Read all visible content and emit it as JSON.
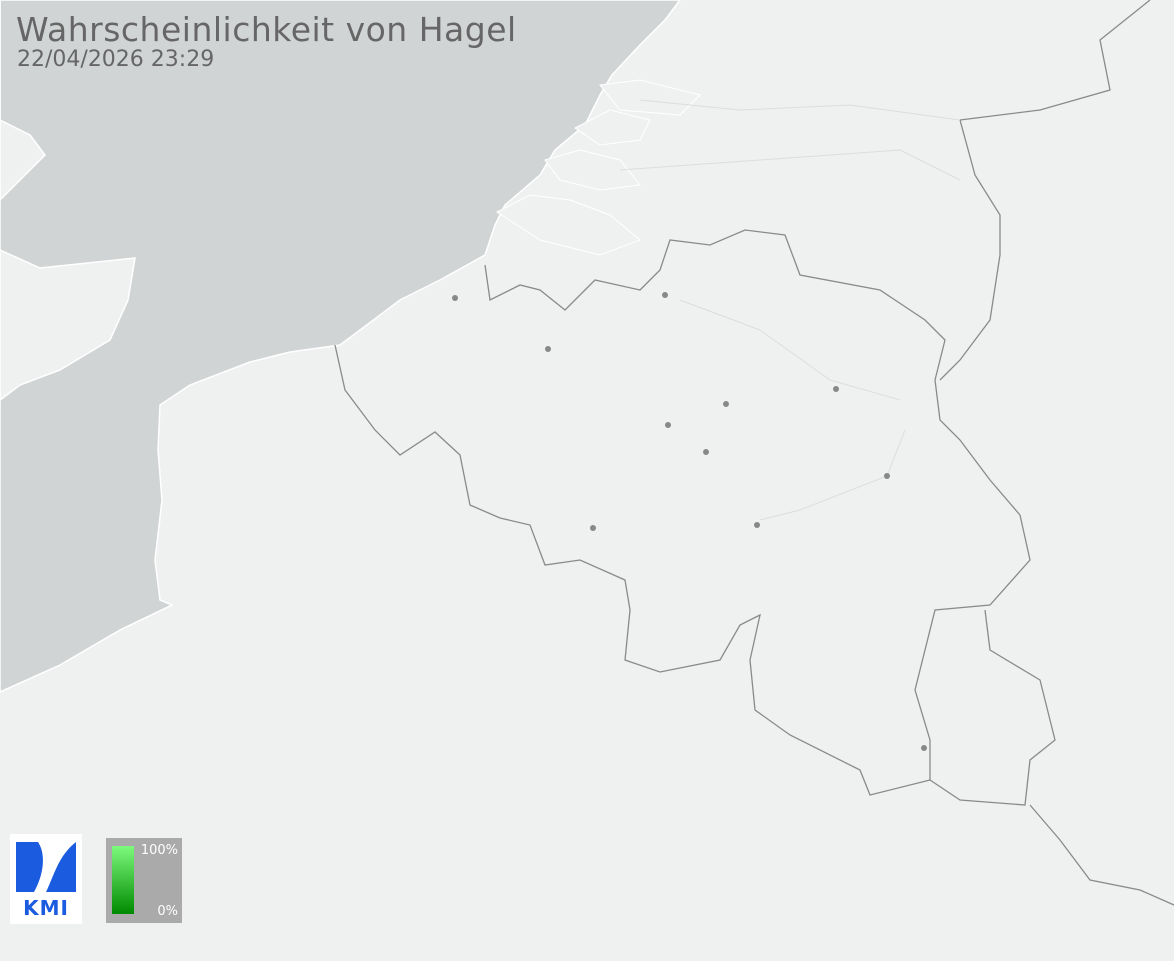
{
  "header": {
    "title": "Wahrscheinlichkeit von Hagel",
    "timestamp": "22/04/2026 23:29"
  },
  "logo": {
    "text": "KMI",
    "color": "#1b5be0"
  },
  "legend": {
    "max_label": "100%",
    "min_label": "0%",
    "color_max": "#7dfa7d",
    "color_min": "#008a00"
  },
  "map": {
    "land_color": "#eff0f0",
    "sea_color": "#d1d4d5",
    "border_color": "#8a8a8a",
    "city_marker_color": "#888888"
  }
}
